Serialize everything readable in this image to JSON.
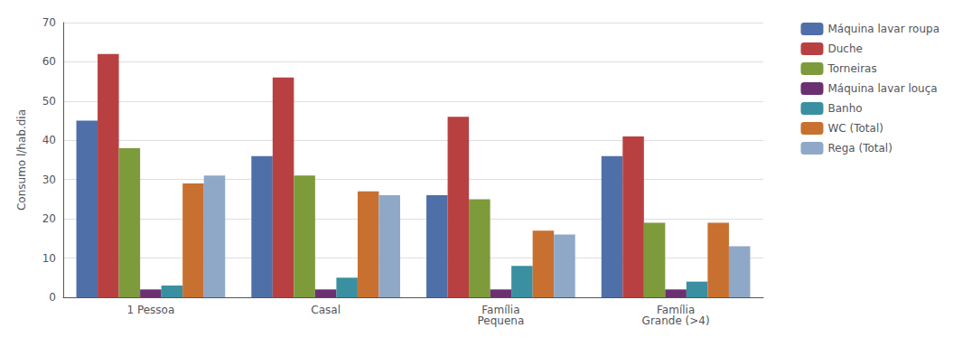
{
  "chart_data": {
    "type": "bar",
    "categories": [
      "1 Pessoa",
      "Casal",
      "Família\nPequena",
      "Família\nGrande (>4)"
    ],
    "series": [
      {
        "name": "Máquina lavar roupa",
        "color": "#4F6FA8",
        "values": [
          45,
          36,
          26,
          36
        ]
      },
      {
        "name": "Duche",
        "color": "#B94040",
        "values": [
          62,
          56,
          46,
          41
        ]
      },
      {
        "name": "Torneiras",
        "color": "#7D9B3A",
        "values": [
          38,
          31,
          25,
          19
        ]
      },
      {
        "name": "Máquina lavar louça",
        "color": "#6B3070",
        "values": [
          2,
          2,
          2,
          2
        ]
      },
      {
        "name": "Banho",
        "color": "#3A8FA0",
        "values": [
          3,
          5,
          8,
          4
        ]
      },
      {
        "name": "WC (Total)",
        "color": "#C87030",
        "values": [
          29,
          27,
          17,
          19
        ]
      },
      {
        "name": "Rega (Total)",
        "color": "#8FA8C8",
        "values": [
          31,
          26,
          16,
          13
        ]
      }
    ],
    "ylabel": "Consumo l/hab.dia",
    "ylim": [
      0,
      70
    ],
    "yticks": [
      0,
      10,
      20,
      30,
      40,
      50,
      60,
      70
    ],
    "grid": true,
    "legend": "right"
  }
}
